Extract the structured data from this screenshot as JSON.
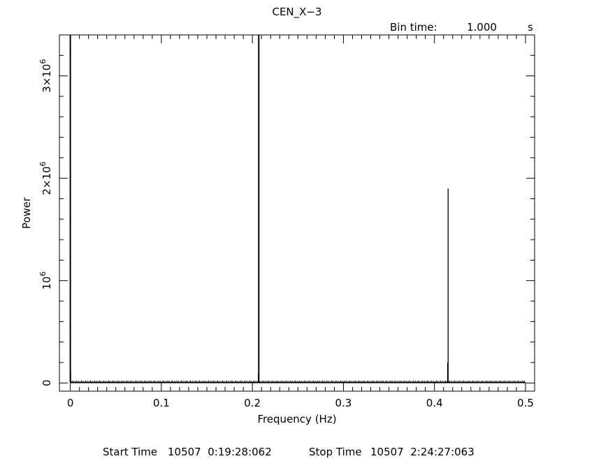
{
  "chart_data": {
    "type": "line",
    "title": "CEN_X−3",
    "xlabel": "Frequency (Hz)",
    "ylabel": "Power",
    "xlim": [
      -0.012,
      0.51
    ],
    "ylim": [
      -80000,
      3400000
    ],
    "x_ticks": [
      0,
      0.1,
      0.2,
      0.3,
      0.4,
      0.5
    ],
    "x_tick_labels": [
      "0",
      "0.1",
      "0.2",
      "0.3",
      "0.4",
      "0.5"
    ],
    "y_ticks": [
      {
        "value": 0,
        "base": "0",
        "exp": ""
      },
      {
        "value": 1000000,
        "base": "10",
        "exp": "6"
      },
      {
        "value": 2000000,
        "base": "2×10",
        "exp": "6"
      },
      {
        "value": 3000000,
        "base": "3×10",
        "exp": "6"
      }
    ],
    "peaks": [
      {
        "x": 0.0,
        "y": 3400000
      },
      {
        "x": 0.0003,
        "y": 120000
      },
      {
        "x": 0.207,
        "y": 3400000
      },
      {
        "x": 0.2065,
        "y": 80000
      },
      {
        "x": 0.415,
        "y": 1900000
      },
      {
        "x": 0.4145,
        "y": 200000
      }
    ],
    "baseline": 5000
  },
  "header": {
    "bin_label": "Bin time:",
    "bin_value": "1.000",
    "bin_unit": "s"
  },
  "footer": {
    "start_label": "Start Time",
    "start_value": "10507  0:19:28:062",
    "stop_label": "Stop Time",
    "stop_value": "10507  2:24:27:063"
  }
}
